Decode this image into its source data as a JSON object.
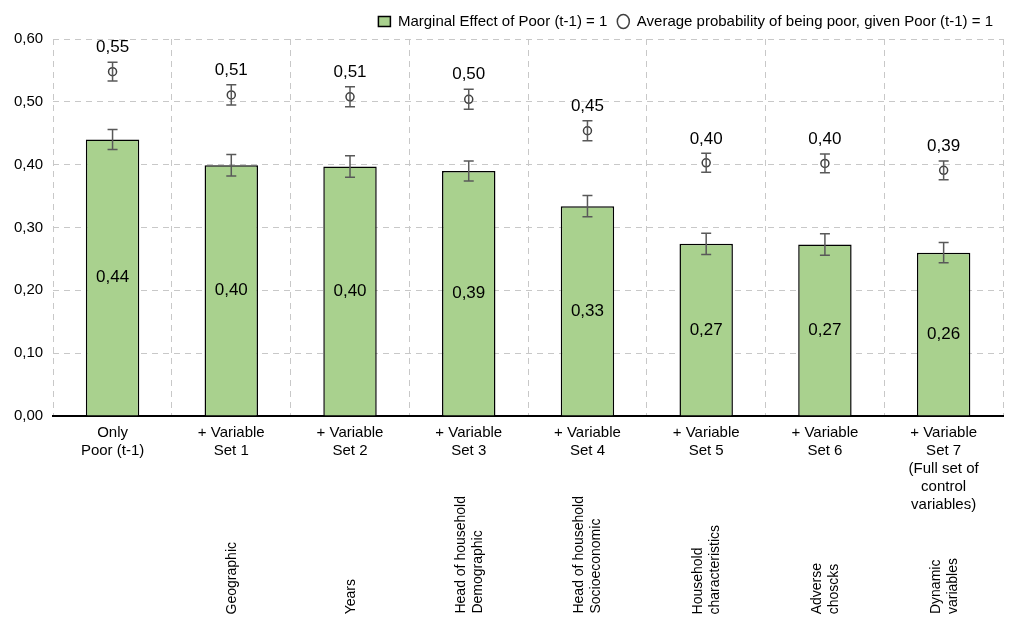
{
  "chart_data": {
    "type": "bar",
    "categories": [
      "Only\nPoor (t-1)",
      "+ Variable\nSet 1",
      "+ Variable\nSet 2",
      "+ Variable\nSet 3",
      "+ Variable\nSet 4",
      "+ Variable\nSet 5",
      "+ Variable\nSet 6",
      "+ Variable\nSet 7\n(Full set of\ncontrol\nvariables)"
    ],
    "series": [
      {
        "name": "Marginal Effect of Poor (t-1) = 1",
        "color": "#a9d18e",
        "values": [
          0.44,
          0.399,
          0.397,
          0.39,
          0.334,
          0.274,
          0.273,
          0.26
        ],
        "errors": [
          0.016,
          0.017,
          0.017,
          0.016,
          0.017,
          0.017,
          0.017,
          0.016
        ],
        "value_labels": [
          "0,44",
          "0,40",
          "0,40",
          "0,39",
          "0,33",
          "0,27",
          "0,27",
          "0,26"
        ]
      },
      {
        "name": "Average probability of being poor, given Poor (t-1) = 1",
        "type": "scatter",
        "color": "#404040",
        "values": [
          0.548,
          0.511,
          0.508,
          0.504,
          0.454,
          0.403,
          0.402,
          0.391
        ],
        "errors": [
          0.015,
          0.016,
          0.016,
          0.016,
          0.016,
          0.015,
          0.015,
          0.015
        ],
        "value_labels": [
          "0,55",
          "0,51",
          "0,51",
          "0,50",
          "0,45",
          "0,40",
          "0,40",
          "0,39"
        ]
      }
    ],
    "ylim": [
      0,
      0.6
    ],
    "yticks": [
      {
        "value": 0,
        "label": "0,00"
      },
      {
        "value": 0.1,
        "label": "0,10"
      },
      {
        "value": 0.2,
        "label": "0,20"
      },
      {
        "value": 0.3,
        "label": "0,30"
      },
      {
        "value": 0.4,
        "label": "0,40"
      },
      {
        "value": 0.5,
        "label": "0,50"
      },
      {
        "value": 0.6,
        "label": "0,60"
      }
    ],
    "grid": true,
    "legend": "top right",
    "marker": "circle",
    "annotations": [
      "Geographic",
      "Years",
      "Head of household\nDemographic",
      "Head of household\nSocioeconomic",
      "Household\ncharacteristics",
      "Adverse\nchoscks",
      "Dynamic\nvariables"
    ]
  }
}
